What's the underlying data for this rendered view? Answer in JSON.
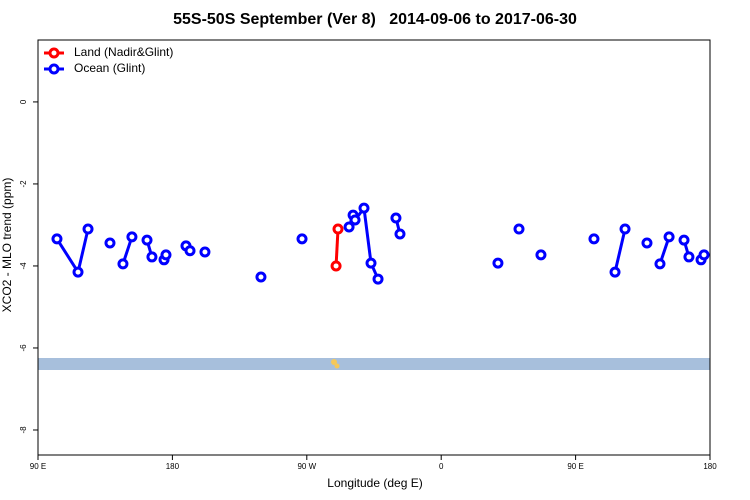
{
  "chart_data": {
    "type": "line",
    "title": "55S-50S September (Ver 8)   2014-09-06 to 2017-06-30",
    "x_label": "Longitude (deg E)",
    "y_label": "XCO2 - MLO trend (ppm)",
    "xlim": [
      90,
      540
    ],
    "ylim": [
      -8.61,
      1.51
    ],
    "xticks": [
      {
        "value": 90,
        "label": "90 E"
      },
      180,
      {
        "value": 270,
        "label": "90 W"
      },
      {
        "value": 360,
        "label": "0"
      },
      {
        "value": 450,
        "label": "90 E"
      },
      {
        "value": 540,
        "label": "180"
      }
    ],
    "yticks": [
      0,
      -2,
      -4,
      -6,
      -8
    ],
    "grid": false,
    "legend": "top-left",
    "series": [
      {
        "name": "Land (Nadir&Glint)",
        "color": "#ff0000",
        "x": [
          289.6,
          290.9
        ],
        "values": [
          -4.0,
          -3.1
        ]
      },
      {
        "name": "Ocean (Glint)",
        "color": "#0000ff",
        "x": [
          102.7,
          116.8,
          123.5,
          null,
          138.2,
          null,
          146.9,
          152.9,
          null,
          163.0,
          166.3,
          null,
          174.4,
          175.7,
          null,
          189.1,
          191.8,
          null,
          201.8,
          null,
          239.3,
          null,
          266.8,
          null,
          298.3,
          301.0,
          302.3,
          308.3,
          313.0,
          317.7,
          null,
          329.7,
          332.4,
          null,
          398.0,
          null,
          412.1,
          null,
          426.8,
          null,
          462.3,
          null,
          476.4,
          483.1,
          null,
          497.8,
          null,
          506.5,
          512.6,
          null,
          522.6,
          525.9,
          null,
          534.0,
          536.0
        ],
        "values": [
          -3.34,
          -4.15,
          -3.1,
          null,
          -3.44,
          null,
          -3.95,
          -3.29,
          null,
          -3.37,
          -3.78,
          null,
          -3.85,
          -3.73,
          null,
          -3.51,
          -3.63,
          null,
          -3.66,
          null,
          -4.27,
          null,
          -3.34,
          null,
          -3.05,
          -2.76,
          -2.88,
          -2.59,
          -3.93,
          -4.32,
          null,
          -2.83,
          -3.22,
          null,
          -3.93,
          null,
          -3.1,
          null,
          -3.73,
          null,
          -3.34,
          null,
          -4.15,
          -3.1,
          null,
          -3.44,
          null,
          -3.95,
          -3.29,
          null,
          -3.37,
          -3.78,
          null,
          -3.85,
          -3.73
        ]
      }
    ]
  }
}
